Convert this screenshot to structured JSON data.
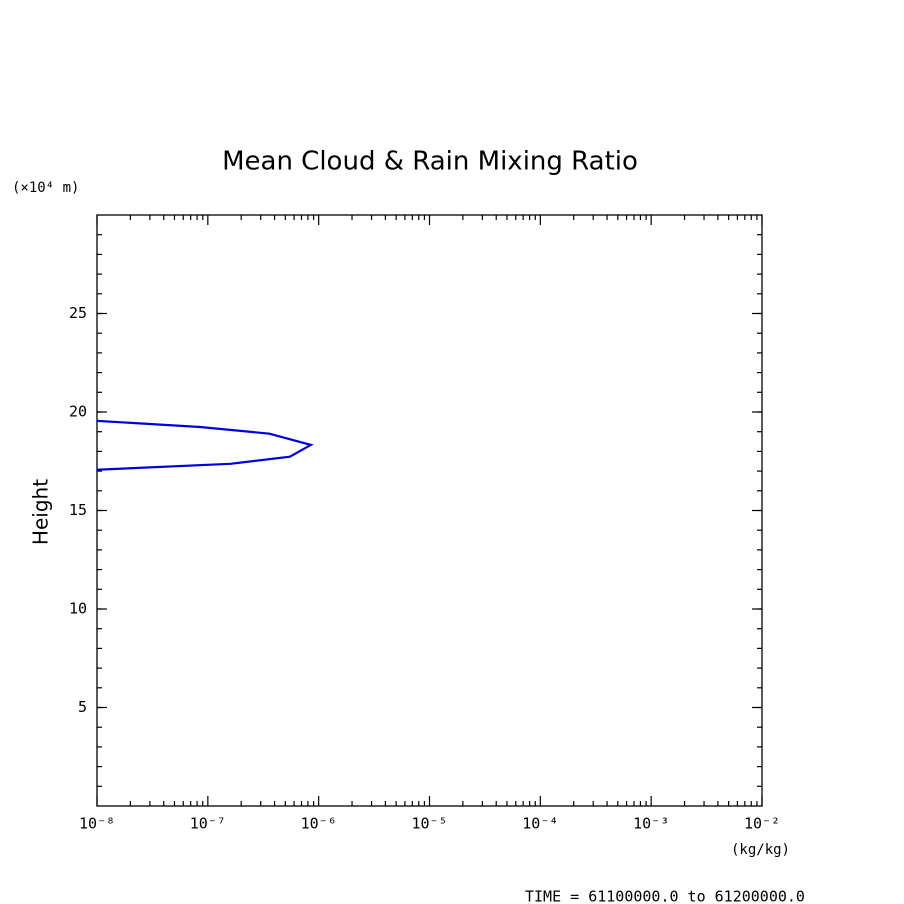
{
  "chart_data": {
    "type": "line",
    "title": "Mean Cloud & Rain Mixing Ratio",
    "y_unit_label": "(×10⁴ m)",
    "ylabel": "Height",
    "xlabel": "(kg/kg)",
    "annotation": "TIME = 61100000.0 to 61200000.0",
    "xscale": "log",
    "xlim": [
      1e-08,
      0.01
    ],
    "xticks": [
      {
        "value": 1e-08,
        "label": "10⁻⁸"
      },
      {
        "value": 1e-07,
        "label": "10⁻⁷"
      },
      {
        "value": 1e-06,
        "label": "10⁻⁶"
      },
      {
        "value": 1e-05,
        "label": "10⁻⁵"
      },
      {
        "value": 0.0001,
        "label": "10⁻⁴"
      },
      {
        "value": 0.001,
        "label": "10⁻³"
      },
      {
        "value": 0.01,
        "label": "10⁻²"
      }
    ],
    "ylim": [
      0,
      30
    ],
    "yticks": [
      5,
      10,
      15,
      20,
      25
    ],
    "series": [
      {
        "color": "#0000dd",
        "x": [
          1e-08,
          1.6e-07,
          5.5e-07,
          8.5e-07,
          3.6e-07,
          8.5e-08,
          1e-08
        ],
        "values": [
          17.07,
          17.37,
          17.73,
          18.33,
          18.9,
          19.24,
          19.55
        ]
      }
    ]
  }
}
